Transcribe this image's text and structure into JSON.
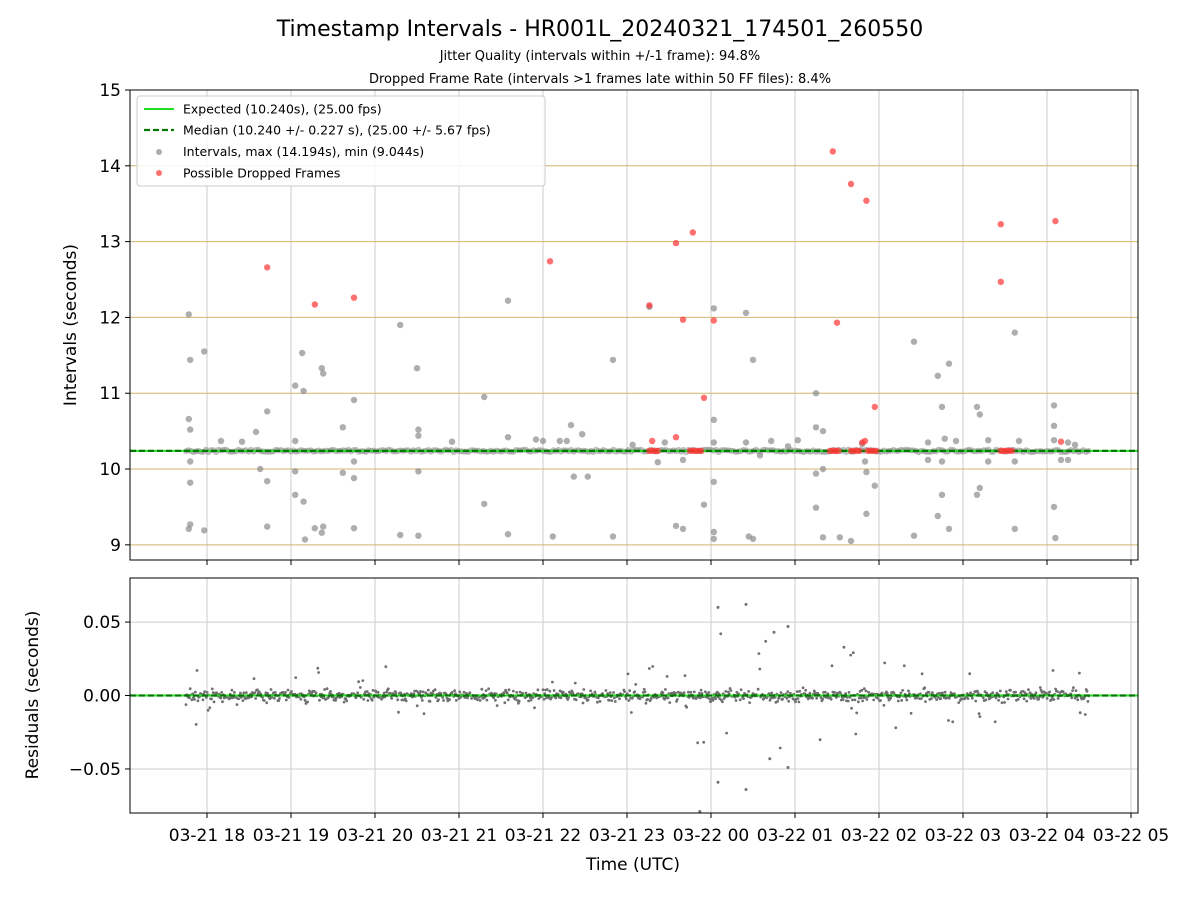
{
  "title": "Timestamp Intervals - HR001L_20240321_174501_260550",
  "subtitle1": "Jitter Quality (intervals within +/-1 frame): 94.8%",
  "subtitle2": "Dropped Frame Rate (intervals >1 frames late within 50 FF files): 8.4%",
  "chart_data": [
    {
      "type": "scatter",
      "ylabel": "Intervals (seconds)",
      "ylim": [
        8.8,
        15
      ],
      "yticks": [
        9,
        10,
        11,
        12,
        13,
        14,
        15
      ],
      "grid": "both",
      "legend_position": "top-left",
      "legend": [
        "Expected (10.240s), (25.00 fps)",
        "Median (10.240 +/- 0.227 s), (25.00 +/- 5.67 fps)",
        "Intervals, max (14.194s), min (9.044s)",
        "Possible Dropped Frames"
      ],
      "expected_line": 10.24,
      "median_line": 10.24,
      "colors": {
        "expected": "#22dd22",
        "median": "#007700",
        "intervals": "#8c8c8c",
        "dropped": "#ff3333",
        "ygrid": "#d2b46e",
        "xgrid": "#cccccc"
      },
      "baseline": {
        "x_range": [
          "2024-03-21T17:45",
          "2024-03-22T04:30"
        ],
        "value": 10.24
      },
      "series": [
        {
          "name": "Intervals, max (14.194s), min (9.044s)",
          "points": [
            [
              "2024-03-21T17:47",
              12.04
            ],
            [
              "2024-03-21T17:48",
              11.44
            ],
            [
              "2024-03-21T17:47",
              10.66
            ],
            [
              "2024-03-21T17:48",
              10.52
            ],
            [
              "2024-03-21T17:48",
              10.1
            ],
            [
              "2024-03-21T17:48",
              9.82
            ],
            [
              "2024-03-21T17:48",
              9.27
            ],
            [
              "2024-03-21T17:47",
              9.21
            ],
            [
              "2024-03-21T17:58",
              11.55
            ],
            [
              "2024-03-21T17:58",
              9.19
            ],
            [
              "2024-03-21T18:10",
              10.37
            ],
            [
              "2024-03-21T18:25",
              10.36
            ],
            [
              "2024-03-21T18:35",
              10.49
            ],
            [
              "2024-03-21T18:38",
              10.0
            ],
            [
              "2024-03-21T18:43",
              10.76
            ],
            [
              "2024-03-21T18:43",
              9.84
            ],
            [
              "2024-03-21T18:43",
              9.24
            ],
            [
              "2024-03-21T19:03",
              11.1
            ],
            [
              "2024-03-21T19:03",
              10.37
            ],
            [
              "2024-03-21T19:03",
              9.97
            ],
            [
              "2024-03-21T19:03",
              9.66
            ],
            [
              "2024-03-21T19:08",
              11.53
            ],
            [
              "2024-03-21T19:09",
              11.03
            ],
            [
              "2024-03-21T19:09",
              9.57
            ],
            [
              "2024-03-21T19:10",
              9.07
            ],
            [
              "2024-03-21T19:17",
              9.22
            ],
            [
              "2024-03-21T19:22",
              11.33
            ],
            [
              "2024-03-21T19:23",
              11.26
            ],
            [
              "2024-03-21T19:23",
              9.24
            ],
            [
              "2024-03-21T19:22",
              9.16
            ],
            [
              "2024-03-21T19:37",
              10.55
            ],
            [
              "2024-03-21T19:37",
              9.95
            ],
            [
              "2024-03-21T19:45",
              10.91
            ],
            [
              "2024-03-21T19:45",
              10.1
            ],
            [
              "2024-03-21T19:45",
              9.88
            ],
            [
              "2024-03-21T19:45",
              9.22
            ],
            [
              "2024-03-21T20:18",
              11.9
            ],
            [
              "2024-03-21T20:18",
              9.13
            ],
            [
              "2024-03-21T20:30",
              11.33
            ],
            [
              "2024-03-21T20:31",
              10.52
            ],
            [
              "2024-03-21T20:31",
              10.44
            ],
            [
              "2024-03-21T20:31",
              9.97
            ],
            [
              "2024-03-21T20:31",
              9.12
            ],
            [
              "2024-03-21T20:55",
              10.36
            ],
            [
              "2024-03-21T21:18",
              10.95
            ],
            [
              "2024-03-21T21:18",
              9.54
            ],
            [
              "2024-03-21T21:35",
              12.22
            ],
            [
              "2024-03-21T21:35",
              10.42
            ],
            [
              "2024-03-21T21:35",
              9.14
            ],
            [
              "2024-03-21T21:55",
              10.39
            ],
            [
              "2024-03-21T22:00",
              10.37
            ],
            [
              "2024-03-21T22:07",
              9.11
            ],
            [
              "2024-03-21T22:12",
              10.37
            ],
            [
              "2024-03-21T22:17",
              10.37
            ],
            [
              "2024-03-21T22:20",
              10.58
            ],
            [
              "2024-03-21T22:22",
              9.9
            ],
            [
              "2024-03-21T22:28",
              10.46
            ],
            [
              "2024-03-21T22:32",
              9.9
            ],
            [
              "2024-03-21T22:50",
              11.44
            ],
            [
              "2024-03-21T22:50",
              9.11
            ],
            [
              "2024-03-21T23:04",
              10.32
            ],
            [
              "2024-03-21T23:16",
              12.14
            ],
            [
              "2024-03-21T23:22",
              10.09
            ],
            [
              "2024-03-21T23:27",
              10.35
            ],
            [
              "2024-03-21T23:35",
              9.25
            ],
            [
              "2024-03-21T23:40",
              9.21
            ],
            [
              "2024-03-21T23:40",
              10.12
            ],
            [
              "2024-03-21T23:55",
              9.53
            ],
            [
              "2024-03-22T00:02",
              12.12
            ],
            [
              "2024-03-22T00:02",
              10.65
            ],
            [
              "2024-03-22T00:02",
              10.35
            ],
            [
              "2024-03-22T00:02",
              9.83
            ],
            [
              "2024-03-22T00:02",
              9.17
            ],
            [
              "2024-03-22T00:02",
              9.08
            ],
            [
              "2024-03-22T00:25",
              12.06
            ],
            [
              "2024-03-22T00:25",
              10.35
            ],
            [
              "2024-03-22T00:27",
              9.11
            ],
            [
              "2024-03-22T00:30",
              11.44
            ],
            [
              "2024-03-22T00:30",
              9.08
            ],
            [
              "2024-03-22T00:35",
              10.18
            ],
            [
              "2024-03-22T00:43",
              10.37
            ],
            [
              "2024-03-22T00:55",
              10.3
            ],
            [
              "2024-03-22T01:02",
              10.38
            ],
            [
              "2024-03-22T01:15",
              11.0
            ],
            [
              "2024-03-22T01:15",
              10.55
            ],
            [
              "2024-03-22T01:15",
              9.94
            ],
            [
              "2024-03-22T01:15",
              9.49
            ],
            [
              "2024-03-22T01:20",
              10.5
            ],
            [
              "2024-03-22T01:20",
              10.0
            ],
            [
              "2024-03-22T01:20",
              9.1
            ],
            [
              "2024-03-22T01:32",
              9.1
            ],
            [
              "2024-03-22T01:40",
              9.05
            ],
            [
              "2024-03-22T01:48",
              10.33
            ],
            [
              "2024-03-22T01:50",
              10.1
            ],
            [
              "2024-03-22T01:51",
              9.96
            ],
            [
              "2024-03-22T01:51",
              9.41
            ],
            [
              "2024-03-22T01:57",
              9.78
            ],
            [
              "2024-03-22T02:25",
              11.68
            ],
            [
              "2024-03-22T02:25",
              9.12
            ],
            [
              "2024-03-22T02:35",
              10.35
            ],
            [
              "2024-03-22T02:35",
              10.12
            ],
            [
              "2024-03-22T02:42",
              11.23
            ],
            [
              "2024-03-22T02:42",
              9.38
            ],
            [
              "2024-03-22T02:45",
              10.82
            ],
            [
              "2024-03-22T02:45",
              10.1
            ],
            [
              "2024-03-22T02:45",
              9.66
            ],
            [
              "2024-03-22T02:47",
              10.4
            ],
            [
              "2024-03-22T02:50",
              11.39
            ],
            [
              "2024-03-22T02:50",
              9.21
            ],
            [
              "2024-03-22T02:55",
              10.37
            ],
            [
              "2024-03-22T03:10",
              10.82
            ],
            [
              "2024-03-22T03:12",
              10.72
            ],
            [
              "2024-03-22T03:12",
              9.75
            ],
            [
              "2024-03-22T03:10",
              9.66
            ],
            [
              "2024-03-22T03:18",
              10.38
            ],
            [
              "2024-03-22T03:18",
              10.1
            ],
            [
              "2024-03-22T03:37",
              11.8
            ],
            [
              "2024-03-22T03:37",
              10.1
            ],
            [
              "2024-03-22T03:37",
              9.21
            ],
            [
              "2024-03-22T03:40",
              10.37
            ],
            [
              "2024-03-22T04:05",
              10.84
            ],
            [
              "2024-03-22T04:05",
              10.57
            ],
            [
              "2024-03-22T04:05",
              10.38
            ],
            [
              "2024-03-22T04:05",
              9.5
            ],
            [
              "2024-03-22T04:06",
              9.09
            ],
            [
              "2024-03-22T04:15",
              10.35
            ],
            [
              "2024-03-22T04:20",
              10.32
            ],
            [
              "2024-03-22T04:10",
              10.12
            ],
            [
              "2024-03-22T04:15",
              10.12
            ]
          ]
        },
        {
          "name": "Possible Dropped Frames",
          "points": [
            [
              "2024-03-21T18:43",
              12.66
            ],
            [
              "2024-03-21T19:17",
              12.17
            ],
            [
              "2024-03-21T19:45",
              12.26
            ],
            [
              "2024-03-21T22:05",
              12.74
            ],
            [
              "2024-03-21T23:16",
              12.16
            ],
            [
              "2024-03-21T23:16",
              10.24
            ],
            [
              "2024-03-21T23:18",
              10.24
            ],
            [
              "2024-03-21T23:20",
              10.24
            ],
            [
              "2024-03-21T23:22",
              10.24
            ],
            [
              "2024-03-21T23:18",
              10.37
            ],
            [
              "2024-03-21T23:35",
              12.98
            ],
            [
              "2024-03-21T23:35",
              10.42
            ],
            [
              "2024-03-21T23:40",
              11.97
            ],
            [
              "2024-03-21T23:47",
              13.12
            ],
            [
              "2024-03-21T23:45",
              10.24
            ],
            [
              "2024-03-21T23:47",
              10.24
            ],
            [
              "2024-03-21T23:49",
              10.24
            ],
            [
              "2024-03-21T23:51",
              10.24
            ],
            [
              "2024-03-21T23:53",
              10.24
            ],
            [
              "2024-03-21T23:55",
              10.94
            ],
            [
              "2024-03-22T00:02",
              11.96
            ],
            [
              "2024-03-22T01:27",
              14.19
            ],
            [
              "2024-03-22T01:25",
              10.24
            ],
            [
              "2024-03-22T01:27",
              10.24
            ],
            [
              "2024-03-22T01:29",
              10.24
            ],
            [
              "2024-03-22T01:31",
              10.24
            ],
            [
              "2024-03-22T01:30",
              11.93
            ],
            [
              "2024-03-22T01:40",
              13.76
            ],
            [
              "2024-03-22T01:40",
              10.24
            ],
            [
              "2024-03-22T01:42",
              10.24
            ],
            [
              "2024-03-22T01:44",
              10.24
            ],
            [
              "2024-03-22T01:46",
              10.24
            ],
            [
              "2024-03-22T01:48",
              10.35
            ],
            [
              "2024-03-22T01:50",
              10.37
            ],
            [
              "2024-03-22T01:51",
              13.54
            ],
            [
              "2024-03-22T01:52",
              10.24
            ],
            [
              "2024-03-22T01:54",
              10.24
            ],
            [
              "2024-03-22T01:56",
              10.24
            ],
            [
              "2024-03-22T01:58",
              10.24
            ],
            [
              "2024-03-22T01:57",
              10.82
            ],
            [
              "2024-03-22T03:27",
              13.23
            ],
            [
              "2024-03-22T03:27",
              12.47
            ],
            [
              "2024-03-22T03:27",
              10.24
            ],
            [
              "2024-03-22T03:29",
              10.24
            ],
            [
              "2024-03-22T03:31",
              10.24
            ],
            [
              "2024-03-22T03:33",
              10.24
            ],
            [
              "2024-03-22T03:35",
              10.24
            ],
            [
              "2024-03-22T04:06",
              13.27
            ],
            [
              "2024-03-22T04:10",
              10.36
            ]
          ]
        }
      ]
    },
    {
      "type": "scatter",
      "xlabel": "Time (UTC)",
      "ylabel": "Residuals (seconds)",
      "ylim": [
        -0.08,
        0.08
      ],
      "yticks": [
        0.05,
        0.0,
        -0.05
      ],
      "ytick_labels": [
        "0.05",
        "0.00",
        "−0.05"
      ],
      "xlim": [
        "2024-03-21T17:05",
        "2024-03-22T05:05"
      ],
      "xticks": [
        "2024-03-21T18:00",
        "2024-03-21T19:00",
        "2024-03-21T20:00",
        "2024-03-21T21:00",
        "2024-03-21T22:00",
        "2024-03-21T23:00",
        "2024-03-22T00:00",
        "2024-03-22T01:00",
        "2024-03-22T02:00",
        "2024-03-22T03:00",
        "2024-03-22T04:00",
        "2024-03-22T05:00"
      ],
      "xtick_labels": [
        "03-21 18",
        "03-21 19",
        "03-21 20",
        "03-21 21",
        "03-21 22",
        "03-21 23",
        "03-22 00",
        "03-22 01",
        "03-22 02",
        "03-22 03",
        "03-22 04",
        "03-22 05"
      ],
      "grid": "both",
      "zero_line": 0.0,
      "colors": {
        "residual": "#707070",
        "zero_expected": "#22dd22",
        "zero_median": "#007700",
        "grid": "#cccccc"
      },
      "noise_envelope": [
        [
          "2024-03-21T17:45",
          0.022
        ],
        [
          "2024-03-21T19:00",
          0.012
        ],
        [
          "2024-03-21T19:45",
          0.028
        ],
        [
          "2024-03-21T20:30",
          0.013
        ],
        [
          "2024-03-21T22:30",
          0.01
        ],
        [
          "2024-03-21T23:30",
          0.03
        ],
        [
          "2024-03-22T00:00",
          0.045
        ],
        [
          "2024-03-22T00:45",
          0.04
        ],
        [
          "2024-03-22T01:30",
          0.035
        ],
        [
          "2024-03-22T02:30",
          0.02
        ],
        [
          "2024-03-22T03:30",
          0.02
        ],
        [
          "2024-03-22T04:30",
          0.015
        ]
      ],
      "outliers": [
        [
          "2024-03-22T00:05",
          0.06
        ],
        [
          "2024-03-22T00:25",
          0.062
        ],
        [
          "2024-03-22T00:05",
          -0.059
        ],
        [
          "2024-03-22T00:25",
          -0.064
        ],
        [
          "2024-03-21T23:52",
          -0.079
        ],
        [
          "2024-03-22T00:45",
          0.043
        ],
        [
          "2024-03-22T00:55",
          0.047
        ],
        [
          "2024-03-22T00:55",
          -0.049
        ],
        [
          "2024-03-22T00:42",
          -0.043
        ]
      ]
    }
  ]
}
